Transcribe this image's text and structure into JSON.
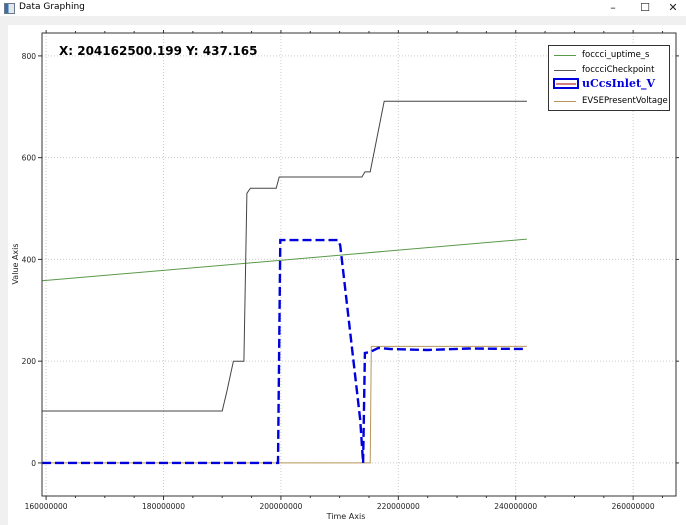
{
  "window": {
    "title": "Data Graphing",
    "minimize": "–",
    "maximize": "☐",
    "close": "✕"
  },
  "readout": "X: 204162500.199 Y: 437.165",
  "legend": [
    {
      "label": "foccci_uptime_s",
      "color": "#5a9a4a"
    },
    {
      "label": "foccciCheckpoint",
      "color": "#555555"
    },
    {
      "label": "uCcsInlet_V",
      "color": "#0000dd",
      "highlighted": true
    },
    {
      "label": "EVSEPresentVoltage",
      "color": "#b8965a"
    }
  ],
  "chart_data": {
    "type": "line",
    "xlabel": "Time Axis",
    "ylabel": "Value Axis",
    "xlim": [
      159300000,
      267300000
    ],
    "ylim": [
      -65,
      845
    ],
    "x_ticks": [
      "160000000",
      "180000000",
      "200000000",
      "220000000",
      "240000000",
      "260000000"
    ],
    "y_ticks": [
      "0",
      "200",
      "400",
      "600",
      "800"
    ],
    "grid": true,
    "legend_position": "top-right",
    "series": [
      {
        "name": "foccci_uptime_s",
        "color": "#5a9a4a",
        "style": "solid",
        "x": [
          159300000,
          241900000
        ],
        "y": [
          358,
          440
        ]
      },
      {
        "name": "foccciCheckpoint",
        "color": "#444444",
        "style": "solid",
        "x": [
          159300000,
          190000000,
          190800000,
          191900000,
          193700000,
          194200000,
          194800000,
          199200000,
          199700000,
          213800000,
          214300000,
          215200000,
          217600000,
          241900000
        ],
        "y": [
          102,
          102,
          141,
          200,
          200,
          530,
          540,
          540,
          562,
          562,
          572,
          572,
          711,
          711
        ]
      },
      {
        "name": "EVSEPresentVoltage",
        "color": "#b8965a",
        "style": "solid",
        "x": [
          159300000,
          215200000,
          215400000,
          241900000
        ],
        "y": [
          0,
          0,
          229,
          229
        ]
      },
      {
        "name": "uCcsInlet_V",
        "color": "#0000dd",
        "style": "dashed",
        "x": [
          159300000,
          199500000,
          199900000,
          200400000,
          209700000,
          210100000,
          213500000,
          214000000,
          214300000,
          215200000,
          216600000,
          218600000,
          225000000,
          232000000,
          241900000
        ],
        "y": [
          0,
          0,
          438,
          438,
          438,
          428,
          85,
          0,
          216,
          218,
          226,
          224,
          222,
          225,
          224
        ]
      }
    ]
  }
}
